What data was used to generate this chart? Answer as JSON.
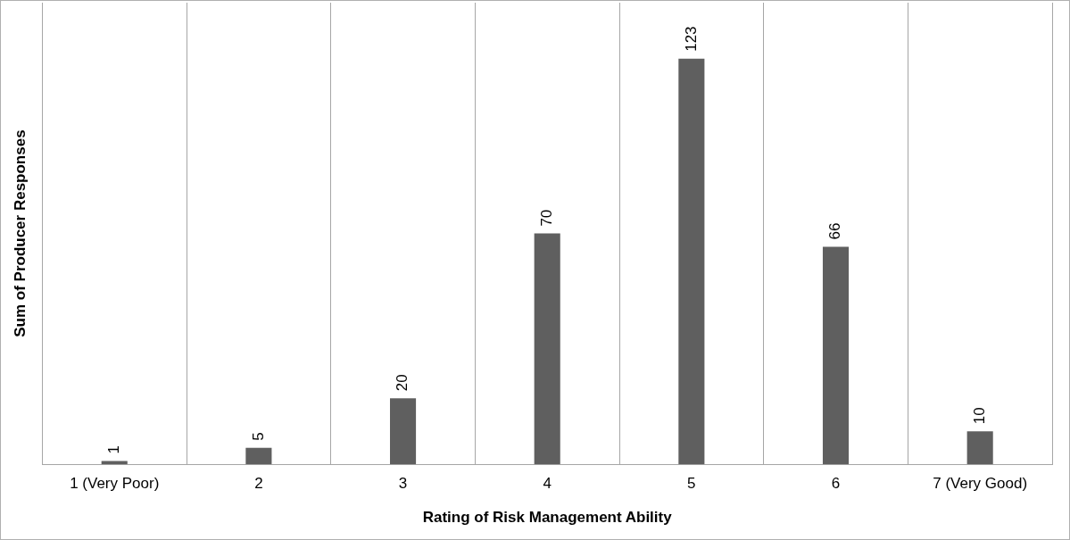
{
  "chart_data": {
    "type": "bar",
    "categories": [
      "1 (Very Poor)",
      "2",
      "3",
      "4",
      "5",
      "6",
      "7 (Very Good)"
    ],
    "values": [
      1,
      5,
      20,
      70,
      123,
      66,
      10
    ],
    "color": "#5f5f5f",
    "xlabel": "Rating of Risk Management Ability",
    "ylabel": "Sum of Producer Responses",
    "data_labels": true,
    "grid": "x"
  }
}
